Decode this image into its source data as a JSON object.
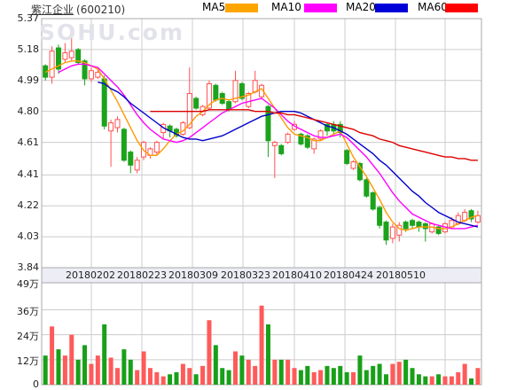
{
  "header": {
    "title": "紫江企业",
    "code": "(600210)"
  },
  "watermark": "SOHU.com",
  "legend": {
    "items": [
      {
        "label": "MA5",
        "color": "#ffa500"
      },
      {
        "label": "MA10",
        "color": "#ff00ff"
      },
      {
        "label": "MA20",
        "color": "#0000d8"
      },
      {
        "label": "MA60",
        "color": "#ff0000"
      }
    ]
  },
  "chart_data": {
    "type": "candlestick-with-volume",
    "title": "紫江企业(600210) daily K-line with volume",
    "legend_position": "top-right",
    "grid": true,
    "price_axis": {
      "tick_labels": [
        "5.37",
        "5.18",
        "4.99",
        "4.80",
        "4.61",
        "4.41",
        "4.22",
        "4.03",
        "3.84"
      ],
      "tick_values": [
        5.37,
        5.18,
        4.99,
        4.8,
        4.61,
        4.41,
        4.22,
        4.03,
        3.84
      ],
      "min": 3.84,
      "max": 5.37
    },
    "volume_axis": {
      "tick_labels": [
        "49万",
        "36万",
        "24万",
        "12万",
        "0"
      ],
      "tick_values": [
        49,
        36,
        24,
        12,
        0
      ],
      "unit": "万",
      "max": 49
    },
    "x_axis": {
      "date_labels": [
        "20180202",
        "20180223",
        "20180309",
        "20180323",
        "20180410",
        "20180424",
        "20180510"
      ]
    },
    "colors": {
      "up": "#ff5151",
      "down": "#1ca31c",
      "vol_up": "#ff5a5a",
      "vol_down": "#18a018",
      "ma5": "#ff9900",
      "ma10": "#ff00ff",
      "ma20": "#0000cc",
      "ma60": "#dd0000",
      "grid": "#cccccc",
      "border": "#a8a8a8",
      "band_bg": "#ededf6",
      "watermark": "#e2e2ea",
      "label": "#222222"
    },
    "series": {
      "candles_format": [
        "open",
        "high",
        "low",
        "close",
        "volume_wan"
      ],
      "candles": [
        [
          5.08,
          5.09,
          4.99,
          5.01,
          14
        ],
        [
          5.01,
          5.2,
          4.97,
          5.17,
          28
        ],
        [
          5.19,
          5.21,
          5.03,
          5.06,
          17
        ],
        [
          5.12,
          5.22,
          5.1,
          5.16,
          14
        ],
        [
          5.13,
          5.28,
          5.11,
          5.17,
          24
        ],
        [
          5.18,
          5.19,
          5.09,
          5.1,
          12
        ],
        [
          5.11,
          5.12,
          4.96,
          5.0,
          19
        ],
        [
          5.0,
          5.07,
          4.98,
          5.05,
          10
        ],
        [
          5.01,
          5.06,
          5.0,
          5.04,
          14
        ],
        [
          5.0,
          5.02,
          4.69,
          4.71,
          29
        ],
        [
          4.68,
          4.75,
          4.46,
          4.73,
          13
        ],
        [
          4.7,
          4.77,
          4.67,
          4.75,
          8
        ],
        [
          4.69,
          4.7,
          4.49,
          4.5,
          17
        ],
        [
          4.55,
          4.56,
          4.42,
          4.47,
          12
        ],
        [
          4.44,
          4.52,
          4.42,
          4.5,
          7
        ],
        [
          4.52,
          4.62,
          4.5,
          4.61,
          16
        ],
        [
          4.53,
          4.58,
          4.51,
          4.57,
          8
        ],
        [
          4.55,
          4.62,
          4.53,
          4.61,
          6
        ],
        [
          4.67,
          4.73,
          4.63,
          4.72,
          4
        ],
        [
          4.71,
          4.72,
          4.64,
          4.68,
          5
        ],
        [
          4.69,
          4.7,
          4.64,
          4.65,
          6
        ],
        [
          4.66,
          4.74,
          4.65,
          4.73,
          10
        ],
        [
          4.7,
          5.07,
          4.69,
          4.91,
          8
        ],
        [
          4.88,
          4.89,
          4.81,
          4.82,
          5
        ],
        [
          4.78,
          4.84,
          4.77,
          4.83,
          9
        ],
        [
          4.82,
          4.99,
          4.81,
          4.97,
          31
        ],
        [
          4.96,
          4.97,
          4.86,
          4.87,
          19
        ],
        [
          4.91,
          4.92,
          4.84,
          4.85,
          8
        ],
        [
          4.86,
          4.87,
          4.8,
          4.81,
          7
        ],
        [
          4.86,
          5.05,
          4.85,
          4.99,
          16
        ],
        [
          4.97,
          4.98,
          4.87,
          4.88,
          14
        ],
        [
          4.83,
          4.92,
          4.82,
          4.91,
          12
        ],
        [
          4.92,
          5.05,
          4.91,
          4.99,
          9
        ],
        [
          4.89,
          4.97,
          4.88,
          4.96,
          38
        ],
        [
          4.83,
          4.84,
          4.52,
          4.62,
          29
        ],
        [
          4.59,
          4.62,
          4.39,
          4.61,
          12
        ],
        [
          4.59,
          4.6,
          4.53,
          4.54,
          12
        ],
        [
          4.61,
          4.67,
          4.6,
          4.66,
          12
        ],
        [
          4.69,
          4.74,
          4.68,
          4.72,
          8
        ],
        [
          4.66,
          4.67,
          4.59,
          4.6,
          7
        ],
        [
          4.65,
          4.66,
          4.57,
          4.58,
          9
        ],
        [
          4.57,
          4.64,
          4.54,
          4.63,
          6
        ],
        [
          4.63,
          4.69,
          4.62,
          4.68,
          7
        ],
        [
          4.72,
          4.73,
          4.65,
          4.68,
          9
        ],
        [
          4.72,
          4.74,
          4.66,
          4.68,
          8
        ],
        [
          4.72,
          4.74,
          4.64,
          4.67,
          9
        ],
        [
          4.56,
          4.57,
          4.47,
          4.48,
          6
        ],
        [
          4.45,
          4.5,
          4.44,
          4.49,
          6
        ],
        [
          4.48,
          4.49,
          4.37,
          4.38,
          14
        ],
        [
          4.38,
          4.39,
          4.27,
          4.28,
          7
        ],
        [
          4.3,
          4.31,
          4.19,
          4.2,
          9
        ],
        [
          4.21,
          4.22,
          4.08,
          4.1,
          10
        ],
        [
          4.12,
          4.13,
          3.98,
          4.01,
          5
        ],
        [
          4.02,
          4.11,
          3.99,
          4.09,
          10
        ],
        [
          4.04,
          4.12,
          4.0,
          4.1,
          11
        ],
        [
          4.12,
          4.13,
          4.06,
          4.08,
          12
        ],
        [
          4.13,
          4.14,
          4.08,
          4.1,
          8
        ],
        [
          4.12,
          4.13,
          4.06,
          4.09,
          5
        ],
        [
          4.11,
          4.12,
          4.0,
          4.08,
          4
        ],
        [
          4.06,
          4.12,
          4.05,
          4.11,
          4
        ],
        [
          4.09,
          4.1,
          4.04,
          4.05,
          5
        ],
        [
          4.06,
          4.12,
          4.05,
          4.11,
          4
        ],
        [
          4.09,
          4.15,
          4.08,
          4.13,
          4
        ],
        [
          4.11,
          4.18,
          4.1,
          4.16,
          6
        ],
        [
          4.13,
          4.2,
          4.12,
          4.18,
          10
        ],
        [
          4.19,
          4.2,
          4.12,
          4.14,
          3
        ],
        [
          4.12,
          4.19,
          4.11,
          4.16,
          8
        ]
      ],
      "ma5": [
        5.04,
        5.06,
        5.08,
        5.1,
        5.11,
        5.11,
        5.1,
        5.08,
        5.06,
        5.0,
        4.93,
        4.86,
        4.78,
        4.7,
        4.62,
        4.56,
        4.53,
        4.53,
        4.57,
        4.62,
        4.66,
        4.68,
        4.72,
        4.77,
        4.8,
        4.84,
        4.87,
        4.88,
        4.87,
        4.88,
        4.89,
        4.9,
        4.92,
        4.94,
        4.88,
        4.82,
        4.76,
        4.7,
        4.66,
        4.65,
        4.64,
        4.62,
        4.62,
        4.64,
        4.66,
        4.68,
        4.6,
        4.52,
        4.46,
        4.4,
        4.33,
        4.26,
        4.18,
        4.12,
        4.08,
        4.07,
        4.08,
        4.09,
        4.09,
        4.09,
        4.08,
        4.08,
        4.09,
        4.11,
        4.13,
        4.15,
        4.16
      ],
      "ma10": [
        null,
        null,
        5.04,
        5.06,
        5.08,
        5.09,
        5.09,
        5.08,
        5.07,
        5.03,
        4.99,
        4.95,
        4.9,
        4.84,
        4.78,
        4.73,
        4.69,
        4.66,
        4.63,
        4.62,
        4.61,
        4.62,
        4.64,
        4.67,
        4.7,
        4.73,
        4.76,
        4.79,
        4.81,
        4.83,
        4.85,
        4.86,
        4.87,
        4.88,
        4.85,
        4.82,
        4.78,
        4.74,
        4.71,
        4.69,
        4.67,
        4.65,
        4.64,
        4.64,
        4.65,
        4.66,
        4.64,
        4.6,
        4.56,
        4.52,
        4.47,
        4.42,
        4.36,
        4.3,
        4.25,
        4.21,
        4.17,
        4.15,
        4.13,
        4.11,
        4.1,
        4.09,
        4.08,
        4.08,
        4.08,
        4.09,
        4.1
      ],
      "ma20": [
        null,
        null,
        null,
        null,
        null,
        null,
        null,
        null,
        4.98,
        4.97,
        4.94,
        4.92,
        4.89,
        4.85,
        4.82,
        4.79,
        4.76,
        4.73,
        4.7,
        4.68,
        4.66,
        4.64,
        4.63,
        4.63,
        4.62,
        4.63,
        4.64,
        4.65,
        4.67,
        4.69,
        4.71,
        4.73,
        4.75,
        4.77,
        4.78,
        4.79,
        4.8,
        4.8,
        4.8,
        4.79,
        4.77,
        4.75,
        4.73,
        4.71,
        4.7,
        4.68,
        4.66,
        4.63,
        4.6,
        4.57,
        4.54,
        4.5,
        4.47,
        4.43,
        4.39,
        4.35,
        4.31,
        4.28,
        4.24,
        4.21,
        4.18,
        4.16,
        4.14,
        4.12,
        4.11,
        4.1,
        4.09
      ],
      "ma60": [
        null,
        null,
        null,
        null,
        null,
        null,
        null,
        null,
        null,
        null,
        null,
        null,
        null,
        null,
        null,
        null,
        4.8,
        4.8,
        4.8,
        4.8,
        4.8,
        4.8,
        4.8,
        4.8,
        4.8,
        4.81,
        4.81,
        4.81,
        4.81,
        4.81,
        4.81,
        4.81,
        4.8,
        4.8,
        4.8,
        4.79,
        4.79,
        4.78,
        4.78,
        4.77,
        4.76,
        4.75,
        4.74,
        4.73,
        4.72,
        4.71,
        4.7,
        4.69,
        4.67,
        4.66,
        4.65,
        4.63,
        4.62,
        4.61,
        4.59,
        4.58,
        4.57,
        4.56,
        4.55,
        4.54,
        4.53,
        4.52,
        4.52,
        4.51,
        4.51,
        4.5,
        4.5
      ]
    }
  }
}
